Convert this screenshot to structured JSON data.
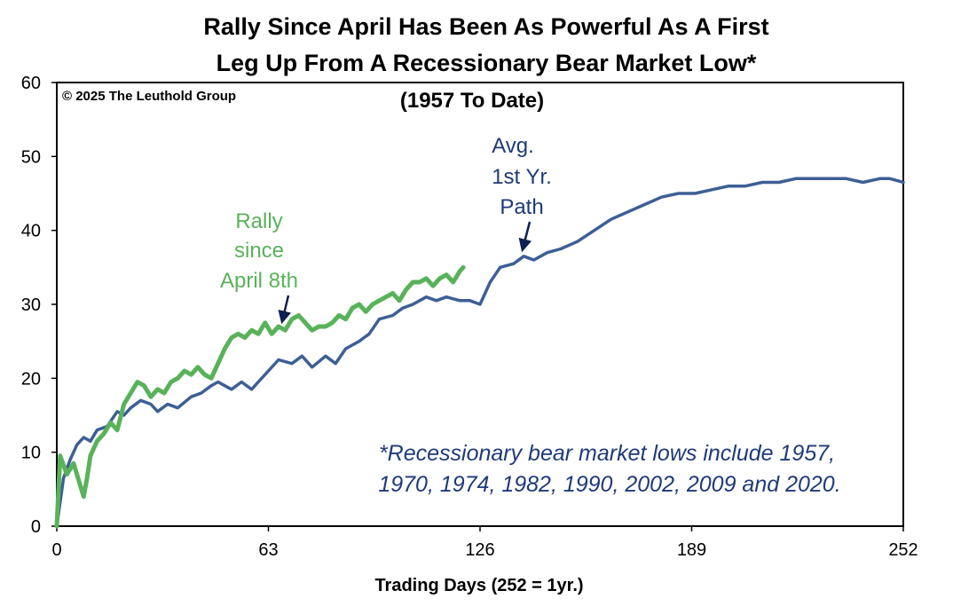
{
  "chart_data": {
    "type": "line",
    "title_line1": "Rally Since April Has Been As Powerful As A First",
    "title_line2": "Leg Up From A Recessionary Bear Market Low*",
    "subtitle": "(1957 To Date)",
    "copyright": "© 2025 The Leuthold Group",
    "xlabel": "Trading Days (252 = 1yr.)",
    "ylabel": "",
    "xlim": [
      0,
      252
    ],
    "ylim": [
      0,
      60
    ],
    "x_ticks": [
      0,
      63,
      126,
      189,
      252
    ],
    "y_ticks": [
      0,
      10,
      20,
      30,
      40,
      50,
      60
    ],
    "grid": false,
    "series": [
      {
        "name": "Avg. 1st Yr. Path",
        "color": "#3d5f95",
        "x": [
          0,
          2,
          4,
          6,
          8,
          10,
          12,
          15,
          18,
          20,
          22,
          25,
          28,
          30,
          33,
          36,
          40,
          43,
          46,
          48,
          50,
          52,
          55,
          58,
          60,
          63,
          66,
          70,
          73,
          76,
          80,
          83,
          86,
          90,
          93,
          96,
          100,
          103,
          106,
          110,
          113,
          116,
          120,
          123,
          126,
          129,
          132,
          136,
          139,
          142,
          146,
          150,
          155,
          160,
          165,
          170,
          175,
          180,
          185,
          190,
          195,
          200,
          205,
          210,
          215,
          220,
          225,
          230,
          235,
          240,
          245,
          248,
          252
        ],
        "y": [
          0,
          6.5,
          9,
          11,
          12,
          11.5,
          13,
          13.5,
          15.5,
          15,
          16,
          17,
          16.5,
          15.5,
          16.5,
          16,
          17.5,
          18,
          19,
          19.5,
          19,
          18.5,
          19.5,
          18.5,
          19.5,
          21,
          22.5,
          22,
          23,
          21.5,
          23,
          22,
          24,
          25,
          26,
          28,
          28.5,
          29.5,
          30,
          31,
          30.5,
          31,
          30.5,
          30.5,
          30,
          33,
          35,
          35.5,
          36.5,
          36,
          37,
          37.5,
          38.5,
          40,
          41.5,
          42.5,
          43.5,
          44.5,
          45,
          45,
          45.5,
          46,
          46,
          46.5,
          46.5,
          47,
          47,
          47,
          47,
          46.5,
          47,
          47,
          46.5
        ]
      },
      {
        "name": "Rally since April 8th",
        "color": "#59b25a",
        "x": [
          0,
          1,
          3,
          5,
          7,
          8,
          9,
          10,
          11,
          12,
          14,
          16,
          18,
          20,
          22,
          24,
          26,
          28,
          30,
          32,
          34,
          36,
          38,
          40,
          42,
          44,
          46,
          48,
          50,
          52,
          54,
          56,
          58,
          60,
          62,
          64,
          66,
          68,
          70,
          72,
          74,
          76,
          78,
          80,
          82,
          84,
          86,
          88,
          90,
          92,
          94,
          96,
          98,
          100,
          102,
          104,
          106,
          108,
          110,
          112,
          114,
          116,
          118,
          120,
          121
        ],
        "y": [
          0,
          9.5,
          7,
          8.5,
          5.5,
          4,
          6.5,
          9.5,
          10.5,
          11.5,
          12.5,
          14,
          13,
          16.5,
          18,
          19.5,
          19,
          17.5,
          18.5,
          18,
          19.5,
          20,
          21,
          20.5,
          21.5,
          20.5,
          20,
          22,
          24,
          25.5,
          26,
          25.5,
          26.5,
          26,
          27.5,
          26,
          27,
          26.5,
          28,
          28.5,
          27.5,
          26.5,
          27,
          27,
          27.5,
          28.5,
          28,
          29.5,
          30,
          29,
          30,
          30.5,
          31,
          31.5,
          30.5,
          32,
          33,
          33,
          33.5,
          32.5,
          33.5,
          34,
          33,
          34.5,
          35
        ]
      }
    ],
    "annotations": {
      "rally_label": [
        "Rally",
        "since",
        "April 8th"
      ],
      "avg_label": [
        "Avg.",
        "1st Yr.",
        "Path"
      ],
      "footnote_line1": "*Recessionary bear market lows include 1957,",
      "footnote_line2": "1970, 1974, 1982, 1990, 2002, 2009 and 2020."
    }
  }
}
